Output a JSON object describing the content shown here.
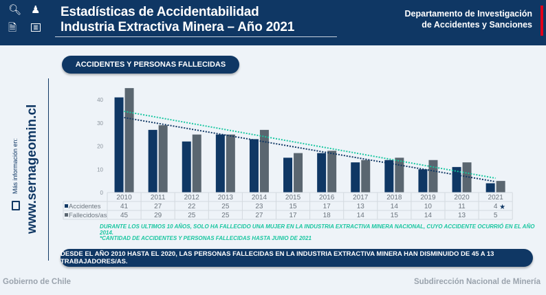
{
  "header": {
    "title_line1": "Estadísticas de Accidentabilidad",
    "title_line2": "Industria Extractiva Minera – Año 2021",
    "dept_line1": "Departamento de Investigación",
    "dept_line2": "de Accidentes y Sanciones",
    "icons": [
      "search-chart-icon",
      "worker-icon",
      "document-icon",
      "presentation-icon"
    ]
  },
  "section_title": "ACCIDENTES Y PERSONAS FALLECIDAS",
  "sidebar": {
    "info_label": "Más información en:",
    "url": "www.sernageomin.cl",
    "icon": "monitor-icon"
  },
  "chart_data": {
    "type": "bar",
    "categories": [
      "2010",
      "2011",
      "2012",
      "2013",
      "2014",
      "2015",
      "2016",
      "2017",
      "2018",
      "2019",
      "2020",
      "2021"
    ],
    "series": [
      {
        "name": "Accidentes",
        "values": [
          41,
          27,
          22,
          25,
          23,
          15,
          17,
          13,
          14,
          10,
          11,
          4
        ],
        "color": "#0f3764",
        "trendline": "#0f3764"
      },
      {
        "name": "Fallecidos/as",
        "values": [
          45,
          29,
          25,
          25,
          27,
          17,
          18,
          14,
          15,
          14,
          13,
          5
        ],
        "color": "#5a6670",
        "trendline": "#19c6a0"
      }
    ],
    "yticks": [
      0,
      10,
      20,
      30,
      40
    ],
    "ylim": [
      0,
      45
    ],
    "trendlines": "linear, dotted",
    "data_table": true,
    "annotation_2021": "★"
  },
  "notes": {
    "note1": "DURANTE LOS ULTIMOS 10 AÑOS, SOLO HA FALLECIDO UNA MUJER EN LA INDUSTRIA EXTRACTIVA MINERA NACIONAL, CUYO ACCIDENTE OCURRIÓ EN EL AÑO 2014.",
    "note2": "*CANTIDAD DE ACCIDENTES Y PERSONAS FALLECIDAS HASTA JUNIO DE 2021"
  },
  "banner": "DESDE EL AÑO 2010 HASTA EL 2020, LAS PERSONAS FALLECIDAS EN LA INDUSTRIA EXTRACTIVA MINERA HAN DISMINUIDO DE 45 A 13 TRABAJADORES/AS.",
  "footer": {
    "left": "Gobierno de Chile",
    "right": "Subdirección Nacional de Minería"
  }
}
